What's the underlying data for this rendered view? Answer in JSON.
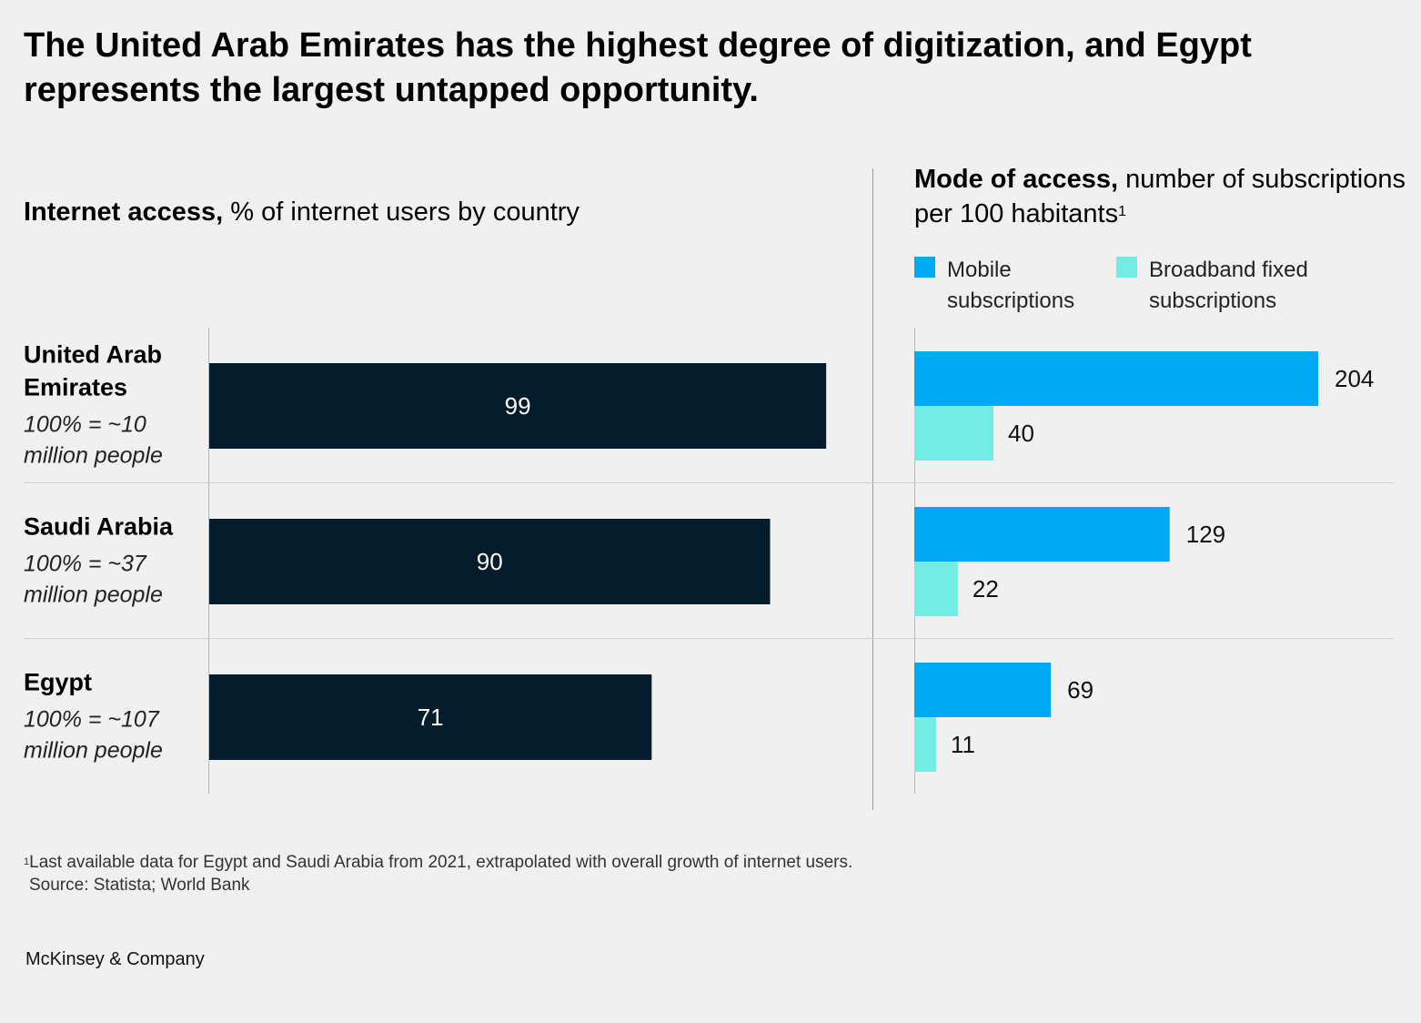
{
  "title": "The United Arab Emirates has the highest degree of digitization, and Egypt represents the largest untapped opportunity.",
  "left_header": {
    "bold": "Internet access,",
    "rest": "% of internet users by country"
  },
  "right_header": {
    "bold": "Mode of access,",
    "rest": "number of subscriptions per 100 habitants",
    "note_mark": "1"
  },
  "footnote": {
    "mark": "1",
    "text": "Last available data for Egypt and Saudi Arabia from 2021, extrapolated with overall growth of internet users."
  },
  "source": "Source: Statista; World Bank",
  "brand": "McKinsey & Company",
  "colors": {
    "internet": "#051c2c",
    "mobile": "#00a9f4",
    "broadband": "#73ede3"
  },
  "chart_data": [
    {
      "type": "bar",
      "orientation": "horizontal",
      "categories": [
        "United Arab Emirates",
        "Saudi Arabia",
        "Egypt"
      ],
      "category_notes": [
        "100% = ~10 million people",
        "100% = ~37 million people",
        "100% = ~107 million people"
      ],
      "values": [
        99,
        90,
        71
      ],
      "xlim": [
        0,
        100
      ]
    },
    {
      "type": "bar",
      "orientation": "horizontal",
      "categories": [
        "United Arab Emirates",
        "Saudi Arabia",
        "Egypt"
      ],
      "series": [
        {
          "name": "Mobile subscriptions",
          "values": [
            204,
            129,
            69
          ]
        },
        {
          "name": "Broadband fixed subscriptions",
          "values": [
            40,
            22,
            11
          ]
        }
      ],
      "legend": "top"
    }
  ]
}
